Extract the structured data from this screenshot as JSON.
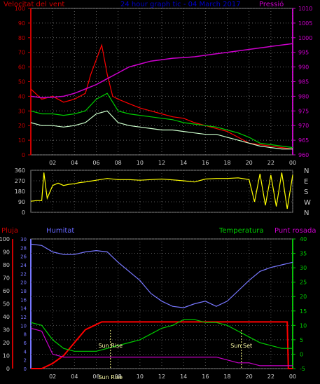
{
  "chart_data": [
    {
      "type": "line",
      "title": "24 hour graph tic - 04 March 2017",
      "left_axis_title": "Velocitat del vent",
      "right_axis_title": "Pressió",
      "left_ticks": [
        "0",
        "10",
        "20",
        "30",
        "40",
        "50",
        "60",
        "70",
        "80",
        "90",
        "100"
      ],
      "right_ticks": [
        "960",
        "965",
        "970",
        "975",
        "980",
        "985",
        "990",
        "995",
        "1000",
        "1005",
        "1010"
      ],
      "x_ticks": [
        "02",
        "04",
        "06",
        "08",
        "10",
        "12",
        "14",
        "16",
        "18",
        "20",
        "22",
        "00"
      ],
      "ylim_left": [
        0,
        100
      ],
      "ylim_right": [
        960,
        1010
      ],
      "colors": {
        "gust": "#ff0000",
        "average": "#00cc00",
        "speed": "#ccffcc",
        "pressure": "#cc00cc",
        "left_title": "#cc0000",
        "title": "#0000cc",
        "right_title": "#cc00cc"
      },
      "series": [
        {
          "key": "gust",
          "hours": [
            0,
            1,
            2,
            3,
            4,
            5,
            5.5,
            6,
            6.5,
            7,
            7.5,
            8,
            9,
            10,
            11,
            12,
            13,
            14,
            15,
            16,
            17,
            18,
            19,
            20,
            21,
            22,
            23,
            24
          ],
          "values": [
            45,
            38,
            40,
            36,
            38,
            42,
            55,
            65,
            75,
            55,
            40,
            38,
            35,
            32,
            30,
            28,
            26,
            25,
            22,
            20,
            18,
            16,
            12,
            8,
            7,
            6,
            5,
            4
          ]
        },
        {
          "key": "average",
          "hours": [
            0,
            1,
            2,
            3,
            4,
            5,
            6,
            7,
            8,
            9,
            10,
            11,
            12,
            13,
            14,
            15,
            16,
            17,
            18,
            19,
            20,
            21,
            22,
            23,
            24
          ],
          "values": [
            30,
            28,
            28,
            27,
            28,
            30,
            38,
            42,
            30,
            28,
            27,
            26,
            25,
            24,
            22,
            21,
            20,
            19,
            17,
            15,
            12,
            8,
            7,
            6,
            5
          ]
        },
        {
          "key": "speed",
          "hours": [
            0,
            1,
            2,
            3,
            4,
            5,
            6,
            7,
            8,
            9,
            10,
            11,
            12,
            13,
            14,
            15,
            16,
            17,
            18,
            19,
            20,
            21,
            22,
            23,
            24
          ],
          "values": [
            22,
            20,
            20,
            19,
            20,
            22,
            28,
            30,
            22,
            20,
            19,
            18,
            17,
            17,
            16,
            15,
            14,
            14,
            12,
            10,
            8,
            6,
            5,
            4,
            4
          ]
        },
        {
          "key": "pressure",
          "hours": [
            0,
            1,
            2,
            3,
            4,
            5,
            6,
            7,
            8,
            9,
            10,
            11,
            12,
            13,
            14,
            15,
            16,
            17,
            18,
            19,
            20,
            21,
            22,
            23,
            24
          ],
          "values": [
            980,
            979.5,
            979.7,
            980,
            981,
            982.5,
            984,
            986,
            988,
            990,
            991,
            992,
            992.5,
            993,
            993.2,
            993.5,
            994,
            994.5,
            995,
            995.5,
            996,
            996.5,
            997,
            997.5,
            998
          ]
        }
      ]
    },
    {
      "type": "line",
      "left_ticks": [
        "0",
        "90",
        "180",
        "270",
        "360"
      ],
      "right_labels": [
        "N",
        "W",
        "S",
        "E",
        "N"
      ],
      "ylim": [
        0,
        360
      ],
      "colors": {
        "direction": "#ffff00"
      },
      "series": [
        {
          "key": "direction",
          "hours": [
            0,
            0.5,
            1,
            1.2,
            1.5,
            2,
            2.5,
            3,
            3.5,
            4,
            4.5,
            5,
            6,
            7,
            8,
            9,
            10,
            11,
            12,
            13,
            14,
            15,
            16,
            17,
            18,
            19,
            20,
            20.5,
            21,
            21.5,
            22,
            22.5,
            23,
            23.5,
            24
          ],
          "values": [
            95,
            100,
            100,
            340,
            120,
            230,
            250,
            230,
            240,
            245,
            255,
            260,
            275,
            290,
            280,
            280,
            275,
            280,
            285,
            278,
            270,
            260,
            285,
            290,
            290,
            295,
            280,
            90,
            330,
            60,
            320,
            50,
            340,
            30,
            320
          ]
        }
      ]
    },
    {
      "type": "line",
      "left_axis_title": "Pluja",
      "humidity_axis_title": "Humitat",
      "temperature_axis_title": "Temperatura",
      "dewpoint_axis_title": "Punt rosada",
      "rain_ticks": [
        "0",
        "10",
        "20",
        "30",
        "40",
        "50",
        "60",
        "70",
        "80",
        "90",
        "100"
      ],
      "humidity_ticks": [
        "0",
        "2",
        "4",
        "6",
        "8",
        "10",
        "12",
        "14",
        "16",
        "18",
        "20",
        "22",
        "24",
        "26",
        "28",
        "30"
      ],
      "temp_ticks": [
        "-5",
        "0",
        "5",
        "10",
        "15",
        "20",
        "25",
        "30",
        "35",
        "40"
      ],
      "x_ticks": [
        "02",
        "04",
        "06",
        "08",
        "10",
        "12",
        "14",
        "16",
        "18",
        "20",
        "22",
        "00"
      ],
      "ylim_rain": [
        0,
        100
      ],
      "ylim_temp": [
        -5,
        40
      ],
      "annotations": [
        "Sun Rise",
        "Sun Set",
        "Sun Rise"
      ],
      "colors": {
        "rain": "#ff0000",
        "humidity": "#7777ff",
        "temperature": "#00cc00",
        "dewpoint": "#cc00cc",
        "rain_title": "#cc0000",
        "humidity_title": "#6666ff",
        "temp_title": "#00cc00",
        "dew_title": "#cc00cc"
      },
      "series": [
        {
          "key": "rain",
          "hours": [
            0,
            1,
            2,
            3,
            4,
            5,
            5.5,
            6,
            6.5,
            7,
            7.5,
            8,
            9,
            10,
            11,
            12,
            13,
            14,
            15,
            16,
            17,
            18,
            19,
            20,
            21,
            22,
            23,
            23.5,
            23.6,
            24
          ],
          "values": [
            0,
            0,
            4,
            10,
            20,
            30,
            32,
            34,
            36,
            36,
            36,
            36,
            36,
            36,
            36,
            36,
            36,
            36,
            36,
            36,
            36,
            36,
            36,
            36,
            36,
            36,
            36,
            36,
            0,
            0
          ]
        },
        {
          "key": "humidity",
          "hours": [
            0,
            1,
            2,
            3,
            4,
            5,
            6,
            7,
            8,
            9,
            10,
            11,
            12,
            13,
            14,
            15,
            16,
            17,
            18,
            19,
            20,
            21,
            22,
            23,
            24
          ],
          "values": [
            96,
            95,
            90,
            88,
            88,
            90,
            91,
            90,
            82,
            75,
            68,
            58,
            52,
            48,
            47,
            50,
            52,
            48,
            52,
            60,
            68,
            75,
            78,
            80,
            82
          ]
        },
        {
          "key": "temperature",
          "hours": [
            0,
            1,
            2,
            3,
            4,
            5,
            6,
            7,
            8,
            9,
            10,
            11,
            12,
            13,
            14,
            15,
            16,
            17,
            18,
            19,
            20,
            21,
            22,
            23,
            24
          ],
          "values": [
            11,
            10,
            5,
            2,
            1,
            1,
            1,
            2,
            3,
            4,
            5,
            7,
            9,
            10,
            12,
            12,
            11,
            11,
            10,
            8,
            6,
            4,
            3,
            2,
            2
          ]
        },
        {
          "key": "dewpoint",
          "hours": [
            0,
            1,
            2,
            3,
            4,
            5,
            6,
            7,
            8,
            9,
            10,
            11,
            12,
            13,
            14,
            15,
            16,
            17,
            18,
            19,
            20,
            21,
            22,
            23,
            24
          ],
          "values": [
            9,
            8,
            0,
            -1,
            -1,
            -1,
            -1,
            -1,
            -1,
            -1,
            -1,
            -1,
            -1,
            -1,
            -1,
            -1,
            -1,
            -1,
            -2,
            -3,
            -3,
            -4,
            -4,
            -4,
            -4
          ]
        }
      ]
    }
  ]
}
